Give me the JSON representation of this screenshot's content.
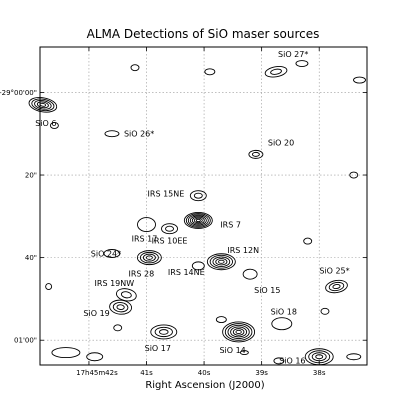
{
  "chart_data": {
    "type": "contour",
    "title": "ALMA Detections of SiO maser sources",
    "xlabel": "Right Ascension (J2000)",
    "ylabel": "",
    "x_ticks": [
      "17h45m42s",
      "41s",
      "40s",
      "39s",
      "38s"
    ],
    "y_ticks": [
      "-29°00'00\"",
      "20\"",
      "40\"",
      "01'00\""
    ],
    "x_range_s": [
      42.85,
      37.17
    ],
    "y_range_arcsec": [
      -11,
      66
    ],
    "grid": true,
    "sources": [
      {
        "name": "SiO 27*",
        "ra_s": 38.75,
        "dec_arcsec": -5,
        "levels": 2
      },
      {
        "name": "SiO 6",
        "ra_s": 42.8,
        "dec_arcsec": 3,
        "levels": 5
      },
      {
        "name": "SiO 26*",
        "ra_s": 41.6,
        "dec_arcsec": 10,
        "levels": 1
      },
      {
        "name": "SiO 20",
        "ra_s": 39.1,
        "dec_arcsec": 15,
        "levels": 2
      },
      {
        "name": "IRS 15NE",
        "ra_s": 40.1,
        "dec_arcsec": 25,
        "levels": 2
      },
      {
        "name": "IRS 7",
        "ra_s": 40.1,
        "dec_arcsec": 31,
        "levels": 7
      },
      {
        "name": "IRS 17",
        "ra_s": 41.0,
        "dec_arcsec": 32,
        "levels": 1
      },
      {
        "name": "IRS 10EE",
        "ra_s": 40.6,
        "dec_arcsec": 33,
        "levels": 2
      },
      {
        "name": "SiO 24*",
        "ra_s": 41.6,
        "dec_arcsec": 39,
        "levels": 1
      },
      {
        "name": "IRS 28",
        "ra_s": 40.95,
        "dec_arcsec": 40,
        "levels": 4
      },
      {
        "name": "IRS 12N",
        "ra_s": 39.7,
        "dec_arcsec": 41,
        "levels": 5
      },
      {
        "name": "IRS 14NE",
        "ra_s": 40.1,
        "dec_arcsec": 42,
        "levels": 1
      },
      {
        "name": "SiO 15",
        "ra_s": 39.2,
        "dec_arcsec": 44,
        "levels": 1
      },
      {
        "name": "SiO 25*",
        "ra_s": 37.7,
        "dec_arcsec": 47,
        "levels": 3
      },
      {
        "name": "IRS 19NW",
        "ra_s": 41.35,
        "dec_arcsec": 49,
        "levels": 2
      },
      {
        "name": "SiO 19",
        "ra_s": 41.45,
        "dec_arcsec": 52,
        "levels": 3
      },
      {
        "name": "SiO 18",
        "ra_s": 38.65,
        "dec_arcsec": 56,
        "levels": 1
      },
      {
        "name": "SiO 17",
        "ra_s": 40.7,
        "dec_arcsec": 58,
        "levels": 3
      },
      {
        "name": "SiO 14",
        "ra_s": 39.4,
        "dec_arcsec": 58,
        "levels": 6
      },
      {
        "name": "SiO 16",
        "ra_s": 38.0,
        "dec_arcsec": 64,
        "levels": 4
      }
    ]
  }
}
